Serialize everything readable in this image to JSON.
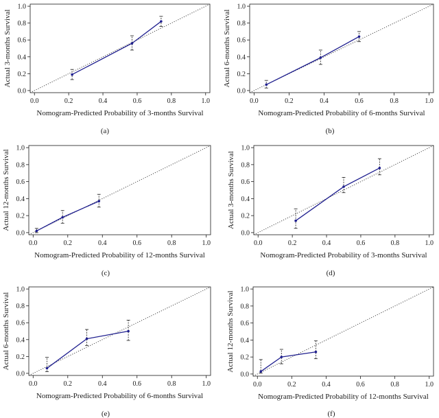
{
  "figure": {
    "colors": {
      "series": "#1f1f8f",
      "ideal": "#333333",
      "axis": "#1a1a1a",
      "errorbar": "#333333"
    }
  },
  "chart_data": [
    {
      "type": "line",
      "panel": "(a)",
      "xlabel": "Nomogram-Predicted Probability of 3-months Survival",
      "ylabel": "Actual 3-months Survival",
      "xlim": [
        0,
        1
      ],
      "ylim": [
        0,
        1
      ],
      "xticks": [
        "0.0",
        "0.2",
        "0.4",
        "0.6",
        "0.8",
        "1.0"
      ],
      "yticks": [
        "0.0",
        "0.2",
        "0.4",
        "0.6",
        "0.8",
        "1.0"
      ],
      "reference_line": "y = x",
      "series": [
        {
          "name": "calibration",
          "x": [
            0.22,
            0.57,
            0.74
          ],
          "y": [
            0.19,
            0.56,
            0.82
          ],
          "err_low": [
            0.13,
            0.48,
            0.76
          ],
          "err_high": [
            0.25,
            0.65,
            0.88
          ]
        }
      ]
    },
    {
      "type": "line",
      "panel": "(b)",
      "xlabel": "Nomogram-Predicted Probability of 6-months Survival",
      "ylabel": "Actual 6-months Survival",
      "xlim": [
        0,
        1
      ],
      "ylim": [
        0,
        1
      ],
      "xticks": [
        "0.0",
        "0.2",
        "0.4",
        "0.6",
        "0.8",
        "1.0"
      ],
      "yticks": [
        "0.0",
        "0.2",
        "0.4",
        "0.6",
        "0.8",
        "1.0"
      ],
      "reference_line": "y = x",
      "series": [
        {
          "name": "calibration",
          "x": [
            0.07,
            0.38,
            0.6
          ],
          "y": [
            0.07,
            0.39,
            0.64
          ],
          "err_low": [
            0.03,
            0.31,
            0.58
          ],
          "err_high": [
            0.12,
            0.48,
            0.7
          ]
        }
      ]
    },
    {
      "type": "line",
      "panel": "(c)",
      "xlabel": "Nomogram-Predicted Probability of 12-months Survival",
      "ylabel": "Actual 12-months Survival",
      "xlim": [
        0,
        1
      ],
      "ylim": [
        0,
        1
      ],
      "xticks": [
        "0.0",
        "0.2",
        "0.4",
        "0.6",
        "0.8",
        "1.0"
      ],
      "yticks": [
        "0.0",
        "0.2",
        "0.4",
        "0.6",
        "0.8",
        "1.0"
      ],
      "reference_line": "y = x",
      "series": [
        {
          "name": "calibration",
          "x": [
            0.02,
            0.17,
            0.38
          ],
          "y": [
            0.02,
            0.18,
            0.37
          ],
          "err_low": [
            0.0,
            0.11,
            0.3
          ],
          "err_high": [
            0.05,
            0.26,
            0.45
          ]
        }
      ]
    },
    {
      "type": "line",
      "panel": "(d)",
      "xlabel": "Nomogram-Predicted Probability of 3-months Survival",
      "ylabel": "Actual 3-months Survival",
      "xlim": [
        0,
        1
      ],
      "ylim": [
        0,
        1
      ],
      "xticks": [
        "0.0",
        "0.2",
        "0.4",
        "0.6",
        "0.8",
        "1.0"
      ],
      "yticks": [
        "0.0",
        "0.2",
        "0.4",
        "0.6",
        "0.8",
        "1.0"
      ],
      "reference_line": "y = x",
      "series": [
        {
          "name": "calibration",
          "x": [
            0.22,
            0.5,
            0.71
          ],
          "y": [
            0.14,
            0.54,
            0.76
          ],
          "err_low": [
            0.05,
            0.47,
            0.68
          ],
          "err_high": [
            0.28,
            0.65,
            0.87
          ]
        }
      ]
    },
    {
      "type": "line",
      "panel": "(e)",
      "xlabel": "Nomogram-Predicted Probability of 6-months Survival",
      "ylabel": "Actual 6-months Survival",
      "xlim": [
        0,
        1
      ],
      "ylim": [
        0,
        1
      ],
      "xticks": [
        "0.0",
        "0.2",
        "0.4",
        "0.6",
        "0.8",
        "1.0"
      ],
      "yticks": [
        "0.0",
        "0.2",
        "0.4",
        "0.6",
        "0.8",
        "1.0"
      ],
      "reference_line": "y = x",
      "series": [
        {
          "name": "calibration",
          "x": [
            0.08,
            0.31,
            0.55
          ],
          "y": [
            0.06,
            0.41,
            0.5
          ],
          "err_low": [
            0.02,
            0.33,
            0.39
          ],
          "err_high": [
            0.19,
            0.52,
            0.63
          ]
        }
      ]
    },
    {
      "type": "line",
      "panel": "(f)",
      "xlabel": "Nomogram-Predicted Probability of 12-months Survival",
      "ylabel": "Actual 12-months Survival",
      "xlim": [
        0,
        1
      ],
      "ylim": [
        0,
        1
      ],
      "xticks": [
        "0.0",
        "0.2",
        "0.4",
        "0.6",
        "0.8",
        "1.0"
      ],
      "yticks": [
        "0.0",
        "0.2",
        "0.4",
        "0.6",
        "0.8",
        "1.0"
      ],
      "reference_line": "y = x",
      "series": [
        {
          "name": "calibration",
          "x": [
            0.02,
            0.14,
            0.34
          ],
          "y": [
            0.03,
            0.2,
            0.26
          ],
          "err_low": [
            0.01,
            0.12,
            0.18
          ],
          "err_high": [
            0.17,
            0.29,
            0.39
          ]
        }
      ]
    }
  ]
}
